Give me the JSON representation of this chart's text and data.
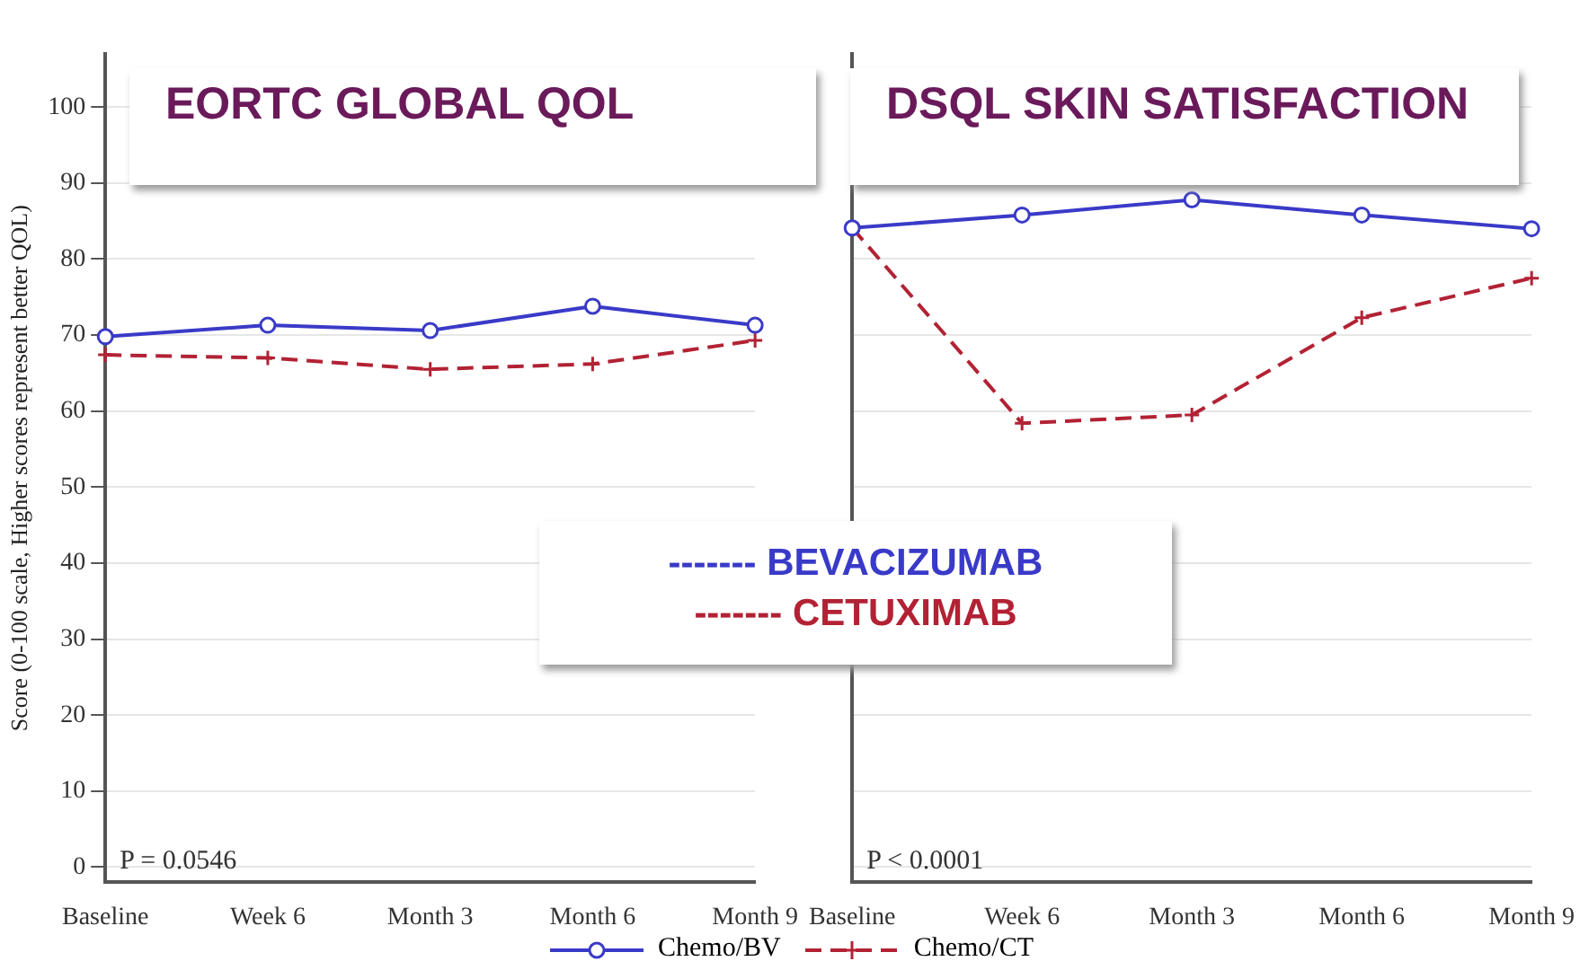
{
  "chart_data": [
    {
      "type": "line",
      "title": "EORTC GLOBAL QOL",
      "ylabel": "Score (0-100 scale, Higher scores represent better QOL)",
      "categories": [
        "Baseline",
        "Week 6",
        "Month 3",
        "Month 6",
        "Month 9"
      ],
      "series": [
        {
          "name": "Chemo/BV",
          "color": "#3a3ac8",
          "marker": "circle",
          "line_style": "solid",
          "values": [
            69.8,
            71.3,
            70.6,
            73.8,
            71.3
          ]
        },
        {
          "name": "Chemo/CT",
          "color": "#b22234",
          "marker": "cross",
          "line_style": "dashed",
          "values": [
            67.4,
            67.0,
            65.5,
            66.2,
            69.3
          ]
        }
      ],
      "ylim": [
        -2,
        107
      ],
      "yticks": [
        0,
        10,
        20,
        30,
        40,
        50,
        60,
        70,
        80,
        90,
        100
      ],
      "grid": "y",
      "legend": "bottom",
      "annotations": [
        "P = 0.0546",
        "------- BEVACIZUMAB",
        "------- CETUXIMAB"
      ]
    },
    {
      "type": "line",
      "title": "DSQL SKIN SATISFACTION",
      "categories": [
        "Baseline",
        "Week 6",
        "Month 3",
        "Month 6",
        "Month 9"
      ],
      "series": [
        {
          "color": "#3a3ac8",
          "marker": "circle",
          "line_style": "solid",
          "values": [
            84.1,
            85.8,
            87.8,
            85.8,
            84.0
          ]
        },
        {
          "color": "#b22234",
          "marker": "cross",
          "line_style": "dashed",
          "values": [
            84.1,
            58.4,
            59.5,
            72.3,
            77.5
          ]
        }
      ],
      "ylim": [
        -2,
        107
      ],
      "yticks": [
        0,
        10,
        20,
        30,
        40,
        50,
        60,
        70,
        80,
        90,
        100
      ],
      "grid": "y",
      "tick_labels": "x",
      "annotations": [
        "P < 0.0001"
      ]
    }
  ]
}
